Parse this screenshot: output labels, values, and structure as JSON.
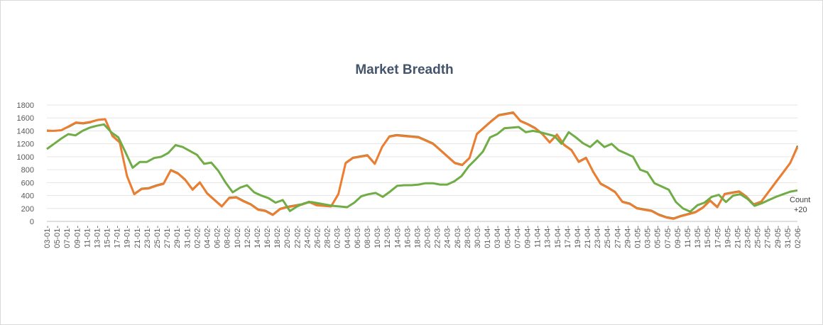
{
  "chart_data": {
    "type": "line",
    "title": "Market Breadth",
    "xlabel": "",
    "ylabel": "",
    "ylim": [
      0,
      1800
    ],
    "yticks": [
      0,
      200,
      400,
      600,
      800,
      1000,
      1200,
      1400,
      1600,
      1800
    ],
    "grid": true,
    "x_tick_labels": [
      "03-01-",
      "05-01-",
      "07-01-",
      "09-01-",
      "11-01-",
      "13-01-",
      "15-01-",
      "17-01-",
      "19-01-",
      "21-01-",
      "23-01-",
      "25-01-",
      "27-01-",
      "29-01-",
      "31-01-",
      "02-02-",
      "04-02-",
      "06-02-",
      "08-02-",
      "10-02-",
      "12-02-",
      "14-02-",
      "16-02-",
      "18-02-",
      "20-02-",
      "22-02-",
      "24-02-",
      "26-02-",
      "28-02-",
      "02-03-",
      "04-03-",
      "06-03-",
      "08-03-",
      "10-03-",
      "12-03-",
      "14-03-",
      "16-03-",
      "18-03-",
      "20-03-",
      "22-03-",
      "24-03-",
      "26-03-",
      "28-03-",
      "30-03-",
      "01-04-",
      "03-04-",
      "05-04-",
      "07-04-",
      "09-04-",
      "11-04-",
      "13-04-",
      "15-04-",
      "17-04-",
      "19-04-",
      "21-04-",
      "23-04-",
      "25-04-",
      "27-04-",
      "29-04-",
      "01-05-",
      "03-05-",
      "05-05-",
      "07-05-",
      "09-05-",
      "11-05-",
      "13-05-",
      "15-05-",
      "17-05-",
      "19-05-",
      "21-05-",
      "23-05-",
      "25-05-",
      "27-05-",
      "29-05-",
      "31-05-",
      "02-06-"
    ],
    "annotation": {
      "label": "Count",
      "value": "+20"
    },
    "series": [
      {
        "color": "#ed7d31",
        "values": [
          1400,
          1400,
          1410,
          1470,
          1530,
          1520,
          1540,
          1570,
          1580,
          1320,
          1220,
          700,
          420,
          500,
          510,
          550,
          580,
          790,
          740,
          640,
          490,
          600,
          430,
          330,
          230,
          360,
          370,
          310,
          260,
          180,
          160,
          100,
          190,
          220,
          240,
          260,
          300,
          250,
          240,
          230,
          420,
          900,
          980,
          1000,
          1020,
          890,
          1150,
          1310,
          1330,
          1320,
          1310,
          1300,
          1250,
          1200,
          1100,
          1000,
          900,
          870,
          980,
          1350,
          1450,
          1550,
          1640,
          1660,
          1680,
          1550,
          1500,
          1440,
          1350,
          1220,
          1340,
          1180,
          1100,
          920,
          980,
          760,
          580,
          520,
          450,
          300,
          270,
          200,
          180,
          160,
          100,
          60,
          40,
          80,
          110,
          140,
          210,
          320,
          220,
          420,
          440,
          460,
          380,
          260,
          300,
          450,
          600,
          750,
          900,
          1150
        ]
      },
      {
        "color": "#548235",
        "values": [
          1410,
          1400,
          1410,
          1460,
          1520,
          1510,
          1530,
          1570,
          1580,
          1330,
          1230,
          710,
          430,
          510,
          520,
          560,
          590,
          800,
          750,
          650,
          500,
          610,
          440,
          340,
          240,
          370,
          380,
          320,
          270,
          190,
          170,
          110,
          200,
          230,
          250,
          270,
          310,
          260,
          250,
          240,
          430,
          910,
          990,
          1010,
          1030,
          900,
          1160,
          1320,
          1340,
          1330,
          1320,
          1310,
          1260,
          1210,
          1110,
          1010,
          910,
          880,
          990,
          1360,
          1460,
          1560,
          1650,
          1670,
          1690,
          1560,
          1510,
          1450,
          1360,
          1230,
          1350,
          1190,
          1110,
          930,
          990,
          770,
          590,
          530,
          460,
          310,
          280,
          210,
          190,
          170,
          110,
          70,
          50,
          90,
          120,
          150,
          220,
          330,
          230,
          430,
          450,
          470,
          390,
          270,
          310,
          460,
          610,
          760,
          910,
          1170
        ]
      },
      {
        "color": "#70ad47",
        "values": [
          1120,
          1200,
          1280,
          1350,
          1330,
          1400,
          1450,
          1480,
          1500,
          1380,
          1300,
          1070,
          830,
          920,
          920,
          980,
          1000,
          1060,
          1180,
          1150,
          1090,
          1030,
          890,
          910,
          780,
          600,
          450,
          520,
          560,
          450,
          400,
          360,
          290,
          330,
          160,
          230,
          280,
          300,
          280,
          260,
          240,
          230,
          220,
          290,
          390,
          420,
          440,
          380,
          460,
          550,
          560,
          560,
          570,
          590,
          590,
          570,
          570,
          620,
          700,
          850,
          960,
          1080,
          1300,
          1350,
          1440,
          1450,
          1460,
          1380,
          1400,
          1380,
          1350,
          1320,
          1200,
          1380,
          1300,
          1210,
          1150,
          1250,
          1150,
          1200,
          1100,
          1050,
          1000,
          800,
          760,
          590,
          540,
          490,
          300,
          200,
          150,
          250,
          290,
          380,
          410,
          300,
          400,
          420,
          350,
          240,
          280,
          330,
          380,
          420,
          460,
          480
        ]
      }
    ]
  }
}
